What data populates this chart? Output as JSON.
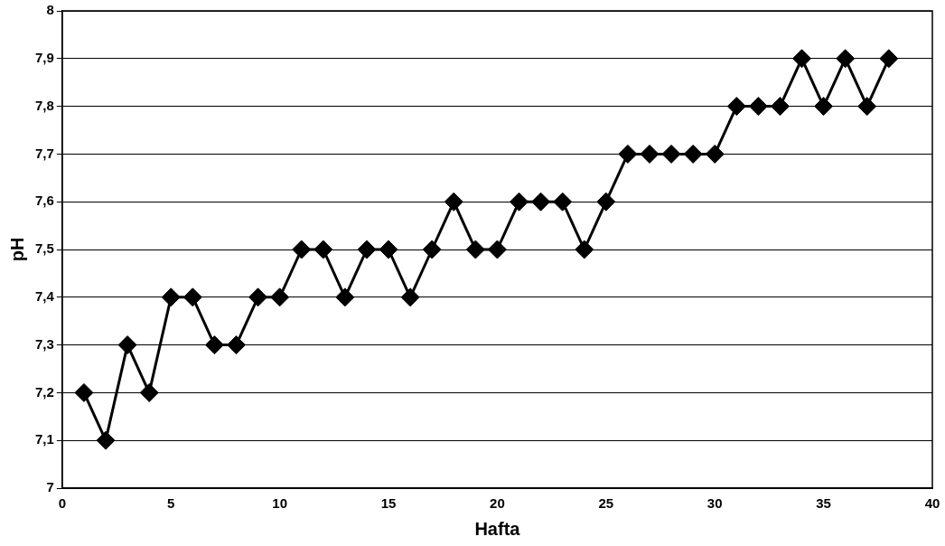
{
  "chart_data": {
    "type": "line",
    "xlabel": "Hafta",
    "ylabel": "pH",
    "x": [
      1,
      2,
      3,
      4,
      5,
      6,
      7,
      8,
      9,
      10,
      11,
      12,
      13,
      14,
      15,
      16,
      17,
      18,
      19,
      20,
      21,
      22,
      23,
      24,
      25,
      26,
      27,
      28,
      29,
      30,
      31,
      32,
      33,
      34,
      35,
      36,
      37,
      38
    ],
    "values": [
      7.2,
      7.1,
      7.3,
      7.2,
      7.4,
      7.4,
      7.3,
      7.3,
      7.4,
      7.4,
      7.5,
      7.5,
      7.4,
      7.5,
      7.5,
      7.4,
      7.5,
      7.6,
      7.5,
      7.5,
      7.6,
      7.6,
      7.6,
      7.5,
      7.6,
      7.7,
      7.7,
      7.7,
      7.7,
      7.7,
      7.8,
      7.8,
      7.8,
      7.9,
      7.8,
      7.9,
      7.8,
      7.9
    ],
    "color": "#000000",
    "xlim": [
      0,
      40
    ],
    "xticks": [
      0,
      5,
      10,
      15,
      20,
      25,
      30,
      35,
      40
    ],
    "ylim": [
      7,
      8
    ],
    "yticks": [
      7,
      {
        "value": 7.1,
        "label": "7,1"
      },
      {
        "value": 7.2,
        "label": "7,2"
      },
      {
        "value": 7.3,
        "label": "7,3"
      },
      {
        "value": 7.4,
        "label": "7,4"
      },
      {
        "value": 7.5,
        "label": "7,5"
      },
      {
        "value": 7.6,
        "label": "7,6"
      },
      {
        "value": 7.7,
        "label": "7,7"
      },
      {
        "value": 7.8,
        "label": "7,8"
      },
      {
        "value": 7.9,
        "label": "7,9"
      },
      8
    ],
    "grid": "y",
    "marker": "diamond",
    "line_style": "solid"
  }
}
